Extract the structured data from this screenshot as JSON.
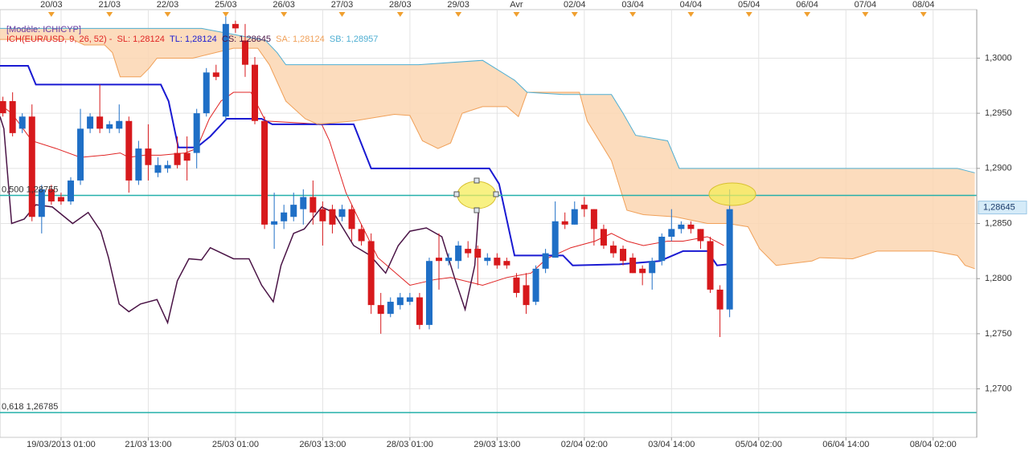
{
  "header": {
    "template": "[Modèle: ICHICYP]",
    "indicator": "ICH(EUR/USD, 9, 26, 52) -"
  },
  "chart_data": {
    "type": "candlestick",
    "xlim": [
      -0.3,
      100.5
    ],
    "ylim": [
      1.2656,
      1.3044
    ],
    "grid": true,
    "yticks": [
      {
        "value": 1.27,
        "label": "1,2700"
      },
      {
        "value": 1.275,
        "label": "1,2750"
      },
      {
        "value": 1.28,
        "label": "1,2800"
      },
      {
        "value": 1.285,
        "label": "1,2850"
      },
      {
        "value": 1.29,
        "label": "1,2900"
      },
      {
        "value": 1.295,
        "label": "1,2950"
      },
      {
        "value": 1.3,
        "label": "1,3000"
      }
    ],
    "xticks": [
      {
        "value": 6,
        "label": "19/03/2013 01:00"
      },
      {
        "value": 15,
        "label": "21/03 13:00"
      },
      {
        "value": 24,
        "label": "25/03 01:00"
      },
      {
        "value": 33,
        "label": "26/03 13:00"
      },
      {
        "value": 42,
        "label": "28/03 01:00"
      },
      {
        "value": 51,
        "label": "29/03 13:00"
      },
      {
        "value": 60,
        "label": "02/04 02:00"
      },
      {
        "value": 69,
        "label": "03/04 14:00"
      },
      {
        "value": 78,
        "label": "05/04 02:00"
      },
      {
        "value": 87,
        "label": "06/04 14:00"
      },
      {
        "value": 96,
        "label": "08/04 02:00"
      }
    ],
    "xticks_top": [
      {
        "value": 5,
        "label": "20/03"
      },
      {
        "value": 11,
        "label": "21/03"
      },
      {
        "value": 17,
        "label": "22/03"
      },
      {
        "value": 23,
        "label": "25/03"
      },
      {
        "value": 29,
        "label": "26/03"
      },
      {
        "value": 35,
        "label": "27/03"
      },
      {
        "value": 41,
        "label": "28/03"
      },
      {
        "value": 47,
        "label": "29/03"
      },
      {
        "value": 53,
        "label": "Avr"
      },
      {
        "value": 59,
        "label": "02/04"
      },
      {
        "value": 65,
        "label": "03/04"
      },
      {
        "value": 71,
        "label": "04/04"
      },
      {
        "value": 77,
        "label": "05/04"
      },
      {
        "value": 83,
        "label": "06/04"
      },
      {
        "value": 89,
        "label": "07/04"
      },
      {
        "value": 95,
        "label": "08/04"
      }
    ],
    "candles": {
      "up_color": "#1f6fc6",
      "down_color": "#d7191c",
      "x": [
        0,
        1,
        2,
        3,
        4,
        5,
        6,
        7,
        8,
        9,
        10,
        11,
        12,
        13,
        14,
        15,
        16,
        17,
        18,
        19,
        20,
        21,
        22,
        23,
        24,
        25,
        26,
        27,
        28,
        29,
        30,
        31,
        32,
        33,
        34,
        35,
        36,
        37,
        38,
        39,
        40,
        41,
        42,
        43,
        44,
        45,
        46,
        47,
        48,
        49,
        50,
        51,
        52,
        53,
        54,
        55,
        56,
        57,
        58,
        59,
        60,
        61,
        62,
        63,
        64,
        65,
        66,
        67,
        68,
        69,
        70,
        71,
        72,
        73,
        74,
        75
      ],
      "open": [
        1.2961,
        1.2961,
        1.2936,
        1.2947,
        1.2856,
        1.2881,
        1.2874,
        1.287,
        1.2889,
        1.2936,
        1.2947,
        1.2936,
        1.2936,
        1.2943,
        1.2889,
        1.2918,
        1.2896,
        1.29,
        1.2914,
        1.2914,
        1.2914,
        1.295,
        1.2987,
        1.2947,
        1.3031,
        1.3016,
        1.2994,
        1.2943,
        1.2849,
        1.2852,
        1.2856,
        1.2863,
        1.2874,
        1.2863,
        1.2863,
        1.2856,
        1.2863,
        1.2845,
        1.2834,
        1.2776,
        1.2768,
        1.2776,
        1.2779,
        1.2783,
        1.2758,
        1.2819,
        1.2816,
        1.2816,
        1.2827,
        1.2827,
        1.2816,
        1.2819,
        1.2816,
        1.2801,
        1.2794,
        1.2779,
        1.2809,
        1.2819,
        1.2852,
        1.2849,
        1.2867,
        1.2863,
        1.2845,
        1.283,
        1.2827,
        1.2819,
        1.2809,
        1.2805,
        1.2816,
        1.2838,
        1.2845,
        1.2849,
        1.2845,
        1.2834,
        1.279,
        1.2772
      ],
      "high": [
        1.2965,
        1.2969,
        1.295,
        1.2958,
        1.2885,
        1.2885,
        1.2878,
        1.2892,
        1.2954,
        1.295,
        1.2976,
        1.2943,
        1.2958,
        1.2947,
        1.2925,
        1.294,
        1.291,
        1.2907,
        1.2929,
        1.2929,
        1.2954,
        1.2991,
        1.2994,
        1.3038,
        1.3034,
        1.3031,
        1.3001,
        1.2947,
        1.2878,
        1.2867,
        1.2878,
        1.2881,
        1.2889,
        1.287,
        1.2867,
        1.2867,
        1.2867,
        1.2849,
        1.2841,
        1.2787,
        1.2783,
        1.2787,
        1.2787,
        1.2787,
        1.2819,
        1.2841,
        1.2823,
        1.2834,
        1.2834,
        1.283,
        1.2823,
        1.2823,
        1.2819,
        1.2805,
        1.2805,
        1.2812,
        1.2827,
        1.287,
        1.286,
        1.287,
        1.2874,
        1.2863,
        1.2849,
        1.2834,
        1.283,
        1.2823,
        1.2812,
        1.2819,
        1.2841,
        1.2863,
        1.2852,
        1.2852,
        1.2845,
        1.2838,
        1.2794,
        1.2881
      ],
      "low": [
        1.2947,
        1.2929,
        1.2932,
        1.2852,
        1.2841,
        1.2867,
        1.2867,
        1.2867,
        1.2885,
        1.2932,
        1.2932,
        1.2932,
        1.2932,
        1.2878,
        1.2885,
        1.2889,
        1.2892,
        1.2896,
        1.29,
        1.2889,
        1.29,
        1.2947,
        1.298,
        1.2943,
        1.3023,
        1.2983,
        1.294,
        1.2845,
        1.2827,
        1.2845,
        1.2852,
        1.2849,
        1.2849,
        1.283,
        1.2841,
        1.2852,
        1.2834,
        1.283,
        1.2768,
        1.275,
        1.2765,
        1.2772,
        1.2776,
        1.2754,
        1.2754,
        1.279,
        1.2812,
        1.2809,
        1.2819,
        1.2794,
        1.2812,
        1.2809,
        1.2809,
        1.2783,
        1.2768,
        1.2776,
        1.2805,
        1.2819,
        1.2845,
        1.2849,
        1.2856,
        1.283,
        1.2827,
        1.2819,
        1.2812,
        1.2805,
        1.2794,
        1.279,
        1.2812,
        1.2834,
        1.2841,
        1.2841,
        1.2827,
        1.2787,
        1.2747,
        1.2765
      ],
      "close": [
        1.295,
        1.2932,
        1.2947,
        1.2856,
        1.2881,
        1.287,
        1.287,
        1.2889,
        1.2936,
        1.2947,
        1.2936,
        1.294,
        1.2943,
        1.2889,
        1.2918,
        1.2903,
        1.2903,
        1.2903,
        1.2903,
        1.2907,
        1.295,
        1.2987,
        1.2983,
        1.3031,
        1.3027,
        1.2994,
        1.2943,
        1.2849,
        1.2852,
        1.286,
        1.2867,
        1.2874,
        1.286,
        1.2852,
        1.2849,
        1.2863,
        1.2845,
        1.2834,
        1.2776,
        1.2768,
        1.2779,
        1.2783,
        1.2783,
        1.2758,
        1.2816,
        1.2816,
        1.2819,
        1.283,
        1.2823,
        1.2819,
        1.2819,
        1.2812,
        1.2812,
        1.2787,
        1.2776,
        1.2809,
        1.2823,
        1.2852,
        1.2849,
        1.2863,
        1.2863,
        1.2845,
        1.283,
        1.2823,
        1.2816,
        1.2805,
        1.2805,
        1.2816,
        1.2838,
        1.2845,
        1.2849,
        1.2845,
        1.2834,
        1.279,
        1.2772,
        1.2863
      ]
    },
    "cloud_color": "#fcd6b2",
    "series": [
      {
        "name": "SL:",
        "legend_value": "1,28124",
        "color": "#e02424",
        "line_width": 1,
        "x": [
          -0.3,
          0.9,
          3.0,
          5.5,
          8.0,
          10.5,
          12.1,
          13.0,
          14.6,
          16.3,
          18.8,
          20.0,
          21.3,
          22.5,
          23.8,
          25.6,
          27.1,
          32.9,
          33.7,
          35.4,
          36.6,
          38.7,
          42.0,
          44.5,
          46.2,
          49.5,
          52.0,
          54.5,
          56.1,
          58.6,
          61.1,
          62.8,
          64.4,
          66.1,
          68.6,
          70.2,
          72.7,
          74.4
        ],
        "values": [
          1.2958,
          1.295,
          1.2925,
          1.2918,
          1.291,
          1.2912,
          1.2914,
          1.291,
          1.2912,
          1.2912,
          1.2914,
          1.2918,
          1.2945,
          1.2961,
          1.2969,
          1.2969,
          1.2943,
          1.294,
          1.2925,
          1.2878,
          1.2856,
          1.2819,
          1.2794,
          1.2799,
          1.2801,
          1.2794,
          1.2801,
          1.2805,
          1.2818,
          1.2828,
          1.2834,
          1.2841,
          1.2834,
          1.283,
          1.2834,
          1.2834,
          1.2838,
          1.283
        ]
      },
      {
        "name": "TL:",
        "legend_value": "1,28124",
        "color": "#1a1ad2",
        "line_width": 2,
        "x": [
          -0.3,
          2.6,
          3.4,
          16.3,
          17.1,
          18.1,
          20.0,
          21.4,
          23.1,
          26.7,
          27.8,
          36.2,
          38.0,
          50.2,
          51.2,
          52.8,
          57.8,
          58.8,
          63.6,
          67.8,
          70.2,
          72.7,
          73.7,
          74.8
        ],
        "values": [
          1.2993,
          1.2993,
          1.2976,
          1.2976,
          1.2961,
          1.2919,
          1.2919,
          1.2929,
          1.2945,
          1.2945,
          1.294,
          1.294,
          1.29,
          1.29,
          1.2886,
          1.2821,
          1.2821,
          1.2812,
          1.2813,
          1.2816,
          1.2825,
          1.2825,
          1.2812,
          1.2813
        ]
      },
      {
        "name": "CS:",
        "legend_value": "1,28645",
        "color": "#4a1446",
        "line_width": 1.5,
        "x": [
          -0.3,
          0.1,
          0.9,
          2.2,
          3.4,
          5.1,
          7.2,
          8.8,
          10.1,
          10.9,
          12.0,
          13.0,
          14.2,
          15.9,
          17.0,
          18.0,
          19.2,
          20.5,
          21.4,
          23.8,
          25.4,
          26.7,
          27.9,
          28.7,
          30.0,
          31.1,
          32.9,
          34.1,
          36.2,
          37.9,
          39.5,
          40.8,
          42.0,
          43.7,
          45.3,
          46.6,
          47.7,
          48.7,
          49.1
        ],
        "values": [
          1.2947,
          1.2936,
          1.285,
          1.2854,
          1.2867,
          1.2865,
          1.285,
          1.286,
          1.2843,
          1.2819,
          1.2777,
          1.277,
          1.2777,
          1.2781,
          1.276,
          1.2798,
          1.2818,
          1.2817,
          1.2828,
          1.2818,
          1.2818,
          1.2794,
          1.2779,
          1.2812,
          1.2841,
          1.2845,
          1.2865,
          1.286,
          1.283,
          1.2821,
          1.2805,
          1.283,
          1.2843,
          1.2846,
          1.2838,
          1.2801,
          1.2772,
          1.2812,
          1.2863
        ]
      },
      {
        "name": "SA:",
        "legend_value": "1,28124",
        "color": "#f0a058",
        "line_width": 1,
        "x": [
          -0.3,
          7.2,
          8.4,
          10.5,
          11.3,
          12.1,
          14.2,
          15.1,
          15.9,
          19.6,
          23.8,
          26.3,
          27.5,
          29.2,
          31.2,
          32.5,
          36.2,
          40.4,
          42.0,
          43.3,
          44.9,
          46.2,
          47.4,
          49.5,
          52.0,
          53.2,
          54.1,
          59.5,
          60.3,
          62.8,
          64.4,
          66.1,
          69.4,
          72.7,
          74.8,
          76.9,
          78.1,
          79.8,
          83.5,
          84.3,
          87.7,
          90.2,
          93.5,
          96.0,
          98.5,
          99.3,
          100.3
        ],
        "values": [
          1.3017,
          1.3017,
          1.3012,
          1.3012,
          1.3005,
          1.2983,
          1.2983,
          1.2991,
          1.3,
          1.3,
          1.3009,
          1.3009,
          1.2994,
          1.2961,
          1.2945,
          1.294,
          1.2943,
          1.2949,
          1.2948,
          1.2925,
          1.2918,
          1.2923,
          1.295,
          1.2956,
          1.2956,
          1.2947,
          1.2969,
          1.2969,
          1.2943,
          1.2907,
          1.2862,
          1.2858,
          1.2856,
          1.285,
          1.285,
          1.2847,
          1.2827,
          1.2812,
          1.2816,
          1.2819,
          1.2818,
          1.2825,
          1.2825,
          1.2825,
          1.2821,
          1.2812,
          1.2809
        ]
      },
      {
        "name": "SB:",
        "legend_value": "1,28957",
        "color": "#4eaed2",
        "line_width": 1,
        "x": [
          -0.3,
          20.5,
          27.1,
          28.3,
          29.2,
          42.9,
          49.5,
          52.8,
          54.1,
          57.8,
          62.8,
          64.0,
          65.3,
          68.6,
          69.8,
          98.5,
          100.3
        ],
        "values": [
          1.3027,
          1.3027,
          1.3016,
          1.3005,
          1.2994,
          1.2994,
          1.2998,
          1.298,
          1.2969,
          1.2967,
          1.2967,
          1.295,
          1.293,
          1.2925,
          1.29,
          1.29,
          1.2896
        ]
      }
    ],
    "levels": [
      {
        "ratio": "0,500",
        "price": {
          "value": 1.28755,
          "label": "1,28755"
        },
        "color": "#24b0aa"
      },
      {
        "ratio": "0,618",
        "price": {
          "value": 1.26785,
          "label": "1,26785"
        },
        "color": "#24b0aa"
      }
    ],
    "last_price": {
      "value": 1.28645,
      "label": "1,28645"
    }
  }
}
